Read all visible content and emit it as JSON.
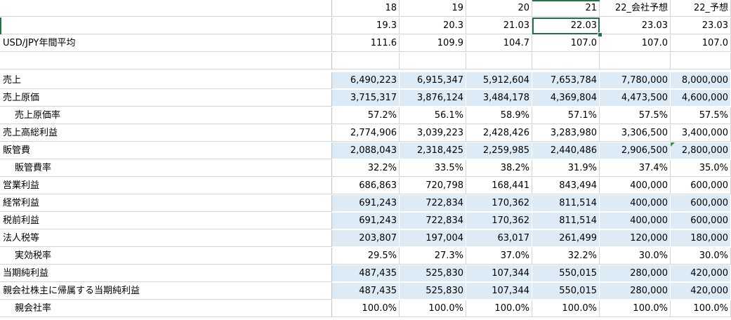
{
  "columns": [
    "18",
    "19",
    "20",
    "21",
    "22_会社予想",
    "22_予想"
  ],
  "periods": [
    "19.3",
    "20.3",
    "21.03",
    "22.03",
    "23.03",
    "23.03"
  ],
  "fx": {
    "label": "USD/JPY年間平均",
    "values": [
      "111.6",
      "109.9",
      "104.7",
      "107.0",
      "107.0",
      "107.0"
    ]
  },
  "rows": [
    {
      "label": "売上",
      "indent": false,
      "blue": true,
      "values": [
        "6,490,223",
        "6,915,347",
        "5,912,604",
        "7,653,784",
        "7,780,000",
        "8,000,000"
      ]
    },
    {
      "label": "売上原価",
      "indent": false,
      "blue": true,
      "values": [
        "3,715,317",
        "3,876,124",
        "3,484,178",
        "4,369,804",
        "4,473,500",
        "4,600,000"
      ]
    },
    {
      "label": "売上原価率",
      "indent": true,
      "blue": false,
      "values": [
        "57.2%",
        "56.1%",
        "58.9%",
        "57.1%",
        "57.5%",
        "57.5%"
      ]
    },
    {
      "label": "売上高総利益",
      "indent": false,
      "blue": false,
      "values": [
        "2,774,906",
        "3,039,223",
        "2,428,426",
        "3,283,980",
        "3,306,500",
        "3,400,000"
      ]
    },
    {
      "label": "販管費",
      "indent": false,
      "blue": true,
      "values": [
        "2,088,043",
        "2,318,425",
        "2,259,985",
        "2,440,486",
        "2,906,500",
        "2,800,000"
      ]
    },
    {
      "label": "販管費率",
      "indent": true,
      "blue": false,
      "values": [
        "32.2%",
        "33.5%",
        "38.2%",
        "31.9%",
        "37.4%",
        "35.0%"
      ]
    },
    {
      "label": "営業利益",
      "indent": false,
      "blue": false,
      "values": [
        "686,863",
        "720,798",
        "168,441",
        "843,494",
        "400,000",
        "600,000"
      ]
    },
    {
      "label": "経常利益",
      "indent": false,
      "blue": true,
      "values": [
        "691,243",
        "722,834",
        "170,362",
        "811,514",
        "400,000",
        "600,000"
      ]
    },
    {
      "label": "税前利益",
      "indent": false,
      "blue": true,
      "values": [
        "691,243",
        "722,834",
        "170,362",
        "811,514",
        "400,000",
        "600,000"
      ]
    },
    {
      "label": "法人税等",
      "indent": false,
      "blue": true,
      "values": [
        "203,807",
        "197,004",
        "63,017",
        "261,499",
        "120,000",
        "180,000"
      ]
    },
    {
      "label": "実効税率",
      "indent": true,
      "blue": false,
      "values": [
        "29.5%",
        "27.3%",
        "37.0%",
        "32.2%",
        "30.0%",
        "30.0%"
      ]
    },
    {
      "label": "当期純利益",
      "indent": false,
      "blue": true,
      "values": [
        "487,435",
        "525,830",
        "107,344",
        "550,015",
        "280,000",
        "420,000"
      ]
    },
    {
      "label": "親会社株主に帰属する当期純利益",
      "indent": false,
      "blue": true,
      "values": [
        "487,435",
        "525,830",
        "107,344",
        "550,015",
        "280,000",
        "420,000"
      ]
    },
    {
      "label": "親会社率",
      "indent": true,
      "blue": false,
      "values": [
        "100.0%",
        "100.0%",
        "100.0%",
        "100.0%",
        "100.0%",
        "100.0%"
      ]
    }
  ],
  "colors": {
    "blue_fill": "#ddebf7",
    "selection": "#217346",
    "grid": "#d4d4d4"
  }
}
